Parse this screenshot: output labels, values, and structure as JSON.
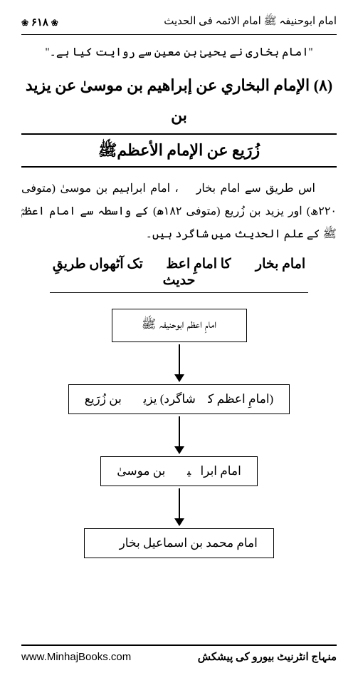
{
  "header": {
    "page_number": "۶۱۸",
    "decoration": "❀",
    "title": "امام ابوحنیفہ ﷺ امام الائمہ فی الحدیث"
  },
  "quote": "''امام بخاری نے یحییٰ بن معین سے روایت کیا ہے۔''",
  "section_title_line1": "(۸) الإمام البخاري عن إبراهيم بن موسىٰ عن يزيد بن",
  "section_title_line2": "زُرَيع عن الإمام الأعظمﷺ",
  "body_paragraph": "اس طریق سے امام بخاریؒ، امام ابراہیم بن موسیٰ (متوفی ۲۲۰ھ) اور یزید بن زُریع (متوفی ۱۸۲ھ) کے واسطہ سے امام اعظمؓ ﷺ کے علم الحدیث میں شاگرد ہیں۔",
  "sub_heading": "امام بخاریؒ کا امامِ اعظمؓ تک آٹھواں طریقِ حدیث",
  "flowchart": {
    "nodes": [
      {
        "label": "امامِ اعظم ابوحنیفہ ﷺ",
        "wide": false
      },
      {
        "label": "(امامِ اعظم کے شاگرد) یزیدؒ بن زُرَیع",
        "wide": true
      },
      {
        "label": "امام ابراہیمؒ بن موسیٰ",
        "wide": false
      },
      {
        "label": "امام محمد بن اسماعیل بخاریؒ",
        "wide": false
      }
    ]
  },
  "footer": {
    "url": "www.MinhajBooks.com",
    "urdu": "منہاج انٹرنیٹ بیورو کی پیشکش"
  },
  "colors": {
    "text": "#000000",
    "background": "#ffffff",
    "border": "#000000"
  }
}
